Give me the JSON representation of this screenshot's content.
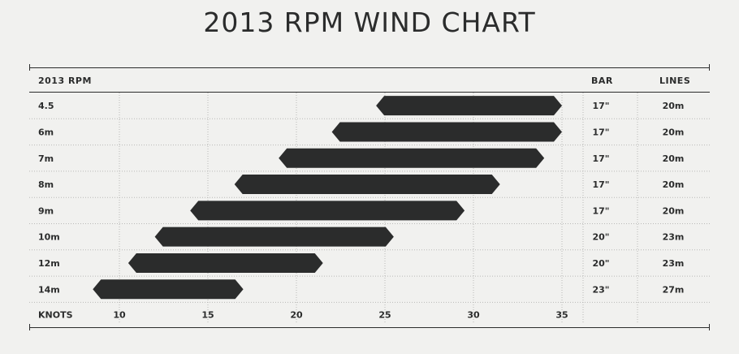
{
  "title": "2013 RPM WIND CHART",
  "headers": {
    "model": "2013 RPM",
    "bar": "BAR",
    "lines": "LINES"
  },
  "colors": {
    "bar_fill": "#2b2c2c",
    "background": "#f1f1ef",
    "grid": "#b9b9b7"
  },
  "chart_data": {
    "type": "bar",
    "orientation": "horizontal-range",
    "xlabel": "KNOTS",
    "xticks": [
      10,
      15,
      20,
      25,
      30,
      35
    ],
    "xlim": [
      7.5,
      35
    ],
    "grid": true,
    "rows": [
      {
        "size": "4.5",
        "min": 24.5,
        "max": 35,
        "bar": "17\"",
        "lines": "20m"
      },
      {
        "size": "6m",
        "min": 22,
        "max": 35,
        "bar": "17\"",
        "lines": "20m"
      },
      {
        "size": "7m",
        "min": 19,
        "max": 34,
        "bar": "17\"",
        "lines": "20m"
      },
      {
        "size": "8m",
        "min": 16.5,
        "max": 31.5,
        "bar": "17\"",
        "lines": "20m"
      },
      {
        "size": "9m",
        "min": 14,
        "max": 29.5,
        "bar": "17\"",
        "lines": "20m"
      },
      {
        "size": "10m",
        "min": 12,
        "max": 25.5,
        "bar": "20\"",
        "lines": "23m"
      },
      {
        "size": "12m",
        "min": 10.5,
        "max": 21.5,
        "bar": "20\"",
        "lines": "23m"
      },
      {
        "size": "14m",
        "min": 8.5,
        "max": 17,
        "bar": "23\"",
        "lines": "27m"
      }
    ]
  }
}
